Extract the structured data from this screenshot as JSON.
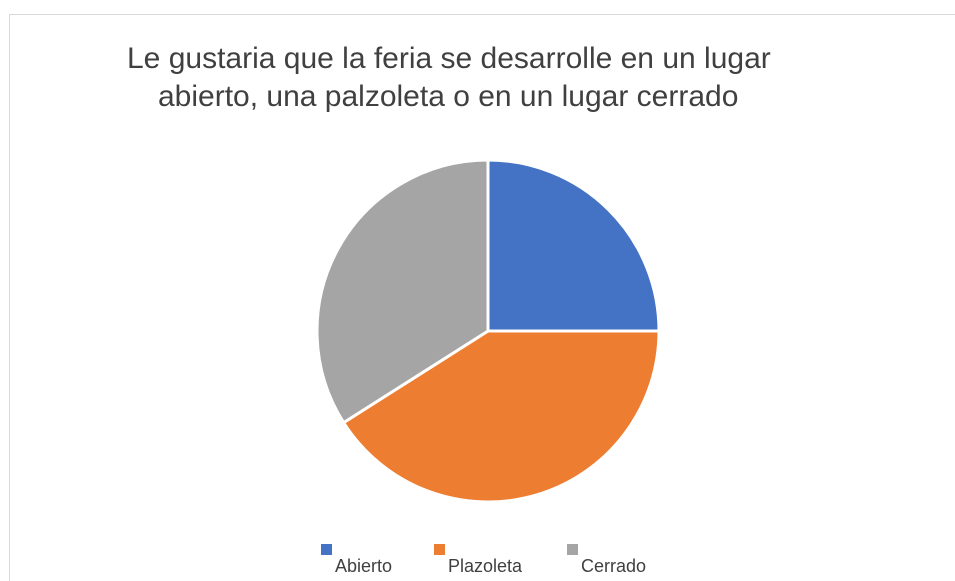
{
  "chart_data": {
    "type": "pie",
    "title": "Le gustaria que la feria se desarrolle en un lugar abierto, una palzoleta o en un lugar cerrado",
    "categories": [
      "Abierto",
      "Plazoleta",
      "Cerrado"
    ],
    "values": [
      25,
      41,
      34
    ],
    "colors": [
      "#4472c4",
      "#ed7d31",
      "#a5a5a5"
    ],
    "legend": "bottom"
  }
}
